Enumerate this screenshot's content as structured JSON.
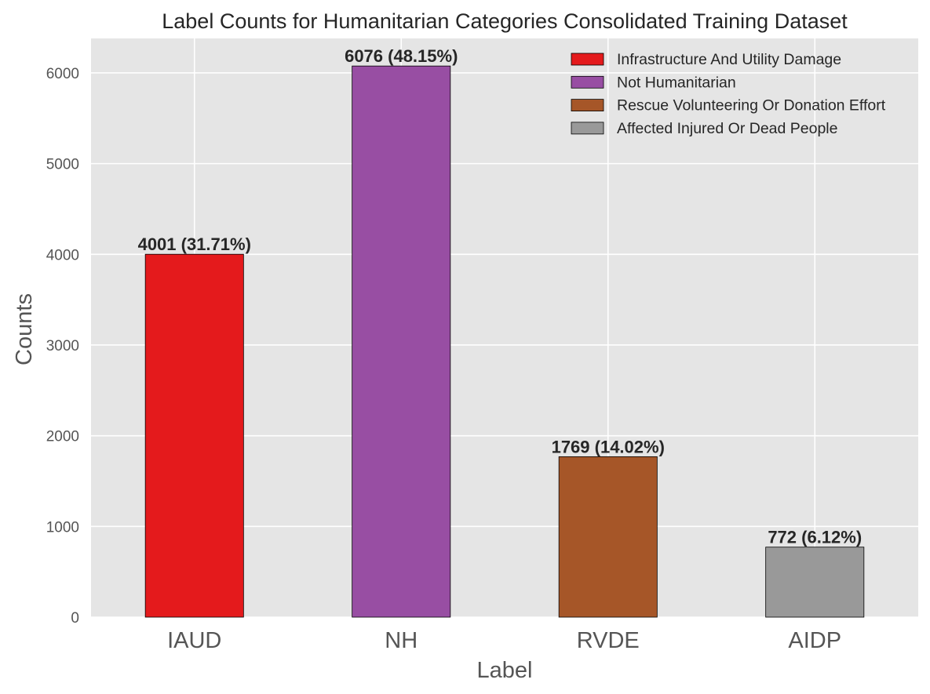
{
  "chart_data": {
    "type": "bar",
    "title": "Label Counts for Humanitarian Categories Consolidated Training Dataset",
    "xlabel": "Label",
    "ylabel": "Counts",
    "categories": [
      "IAUD",
      "NH",
      "RVDE",
      "AIDP"
    ],
    "values": [
      4001,
      6076,
      1769,
      772
    ],
    "bar_labels": [
      "4001 (31.71%)",
      "6076 (48.15%)",
      "1769 (14.02%)",
      "772 (6.12%)"
    ],
    "colors": [
      "#e41a1c",
      "#984ea3",
      "#a65628",
      "#999999"
    ],
    "ylim": [
      0,
      6380
    ],
    "yticks": [
      0,
      1000,
      2000,
      3000,
      4000,
      5000,
      6000
    ],
    "grid": true,
    "legend_position": "top-right",
    "legend": [
      {
        "label": "Infrastructure And Utility Damage",
        "color": "#e41a1c"
      },
      {
        "label": "Not Humanitarian",
        "color": "#984ea3"
      },
      {
        "label": "Rescue Volunteering Or Donation Effort",
        "color": "#a65628"
      },
      {
        "label": "Affected Injured Or Dead People",
        "color": "#999999"
      }
    ]
  }
}
